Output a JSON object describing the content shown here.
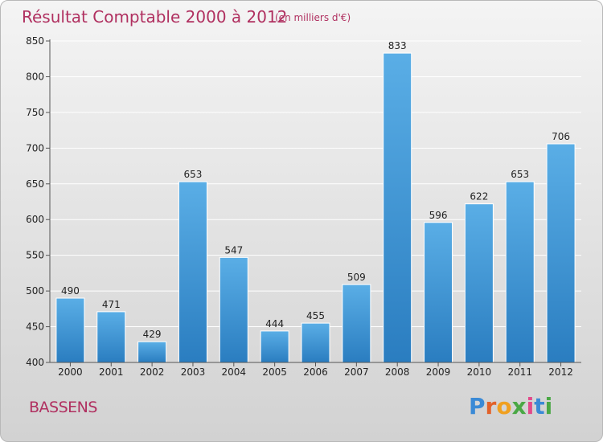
{
  "chart_data": {
    "type": "bar",
    "title": "Résultat Comptable 2000 à 2012",
    "subtitle": "(en milliers d'€)",
    "categories": [
      "2000",
      "2001",
      "2002",
      "2003",
      "2004",
      "2005",
      "2006",
      "2007",
      "2008",
      "2009",
      "2010",
      "2011",
      "2012"
    ],
    "values": [
      490,
      471,
      429,
      653,
      547,
      444,
      455,
      509,
      833,
      596,
      622,
      653,
      706
    ],
    "ylim": [
      400,
      850
    ],
    "yticks": [
      400,
      450,
      500,
      550,
      600,
      650,
      700,
      750,
      800,
      850
    ],
    "grid": true,
    "bar_color_top": "#5aaee6",
    "bar_color_bottom": "#2a7dc0"
  },
  "footer": {
    "commune": "BASSENS",
    "brand": "Proxiti",
    "brand_letters": [
      "P",
      "r",
      "o",
      "x",
      "i",
      "t",
      "i"
    ],
    "brand_colors": [
      "#3a8ad6",
      "#e2622a",
      "#f0a020",
      "#4aa845",
      "#e24a8a",
      "#3a8ad6",
      "#4aa845"
    ]
  }
}
